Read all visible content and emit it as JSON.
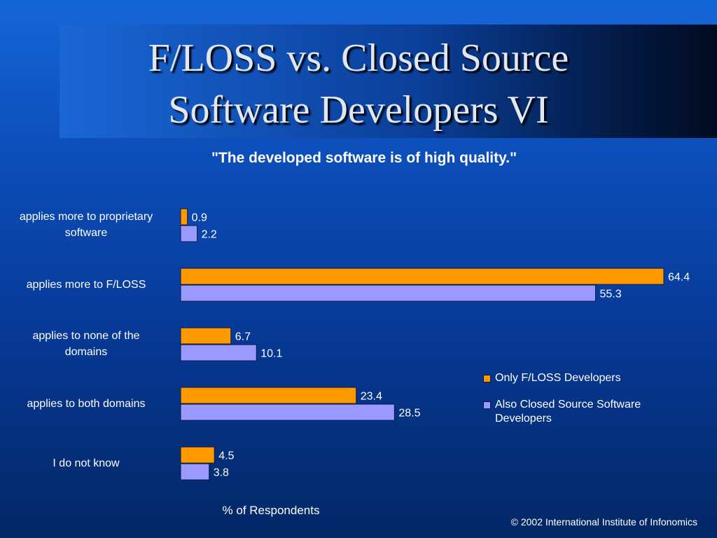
{
  "slide": {
    "title_line1": "F/LOSS vs. Closed Source",
    "title_line2": "Software Developers VI",
    "copyright": "© 2002 International Institute of Infonomics"
  },
  "chart_data": {
    "type": "bar",
    "orientation": "horizontal",
    "title": "\"The developed software is of high quality.\"",
    "xlabel": "% of Respondents",
    "ylabel": "",
    "xlim": [
      0,
      64.4
    ],
    "grid": false,
    "legend_position": "right",
    "categories": [
      "applies more to proprietary software",
      "applies more to F/LOSS",
      "applies to none of the domains",
      "applies to both domains",
      "I do not know"
    ],
    "category_lines": [
      [
        "applies more to proprietary",
        "software"
      ],
      [
        "applies more to F/LOSS"
      ],
      [
        "applies to none of the",
        "domains"
      ],
      [
        "applies to both domains"
      ],
      [
        "I do not know"
      ]
    ],
    "series": [
      {
        "name": "Only F/LOSS Developers",
        "legend_lines": [
          "Only F/LOSS Developers"
        ],
        "color": "#ff9900",
        "values": [
          0.9,
          64.4,
          6.7,
          23.4,
          4.5
        ]
      },
      {
        "name": "Also Closed Source Software Developers",
        "legend_lines": [
          "Also Closed Source Software",
          "Developers"
        ],
        "color": "#9999ff",
        "values": [
          2.2,
          55.3,
          10.1,
          28.5,
          3.8
        ]
      }
    ],
    "data_labels": true
  }
}
